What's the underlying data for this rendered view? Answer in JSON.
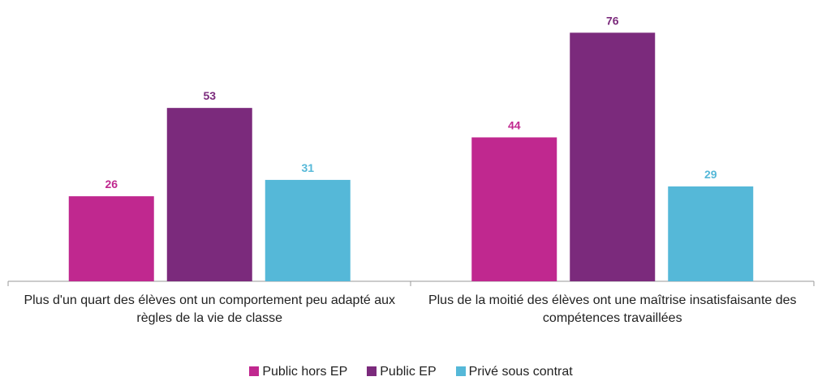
{
  "chart_data": {
    "type": "bar",
    "categories": [
      "Plus d'un quart des élèves ont un comportement peu adapté aux règles de la vie de classe",
      "Plus de la moitié des élèves ont une maîtrise insatisfaisante des compétences travaillées"
    ],
    "series": [
      {
        "name": "Public hors EP",
        "color": "#c0288f",
        "values": [
          26,
          44
        ]
      },
      {
        "name": "Public EP",
        "color": "#7b2a7c",
        "values": [
          53,
          76
        ]
      },
      {
        "name": "Privé sous contrat",
        "color": "#55b8d8",
        "values": [
          31,
          29
        ]
      }
    ],
    "ylim": [
      0,
      86
    ],
    "grid": false,
    "legend": "bottom"
  }
}
